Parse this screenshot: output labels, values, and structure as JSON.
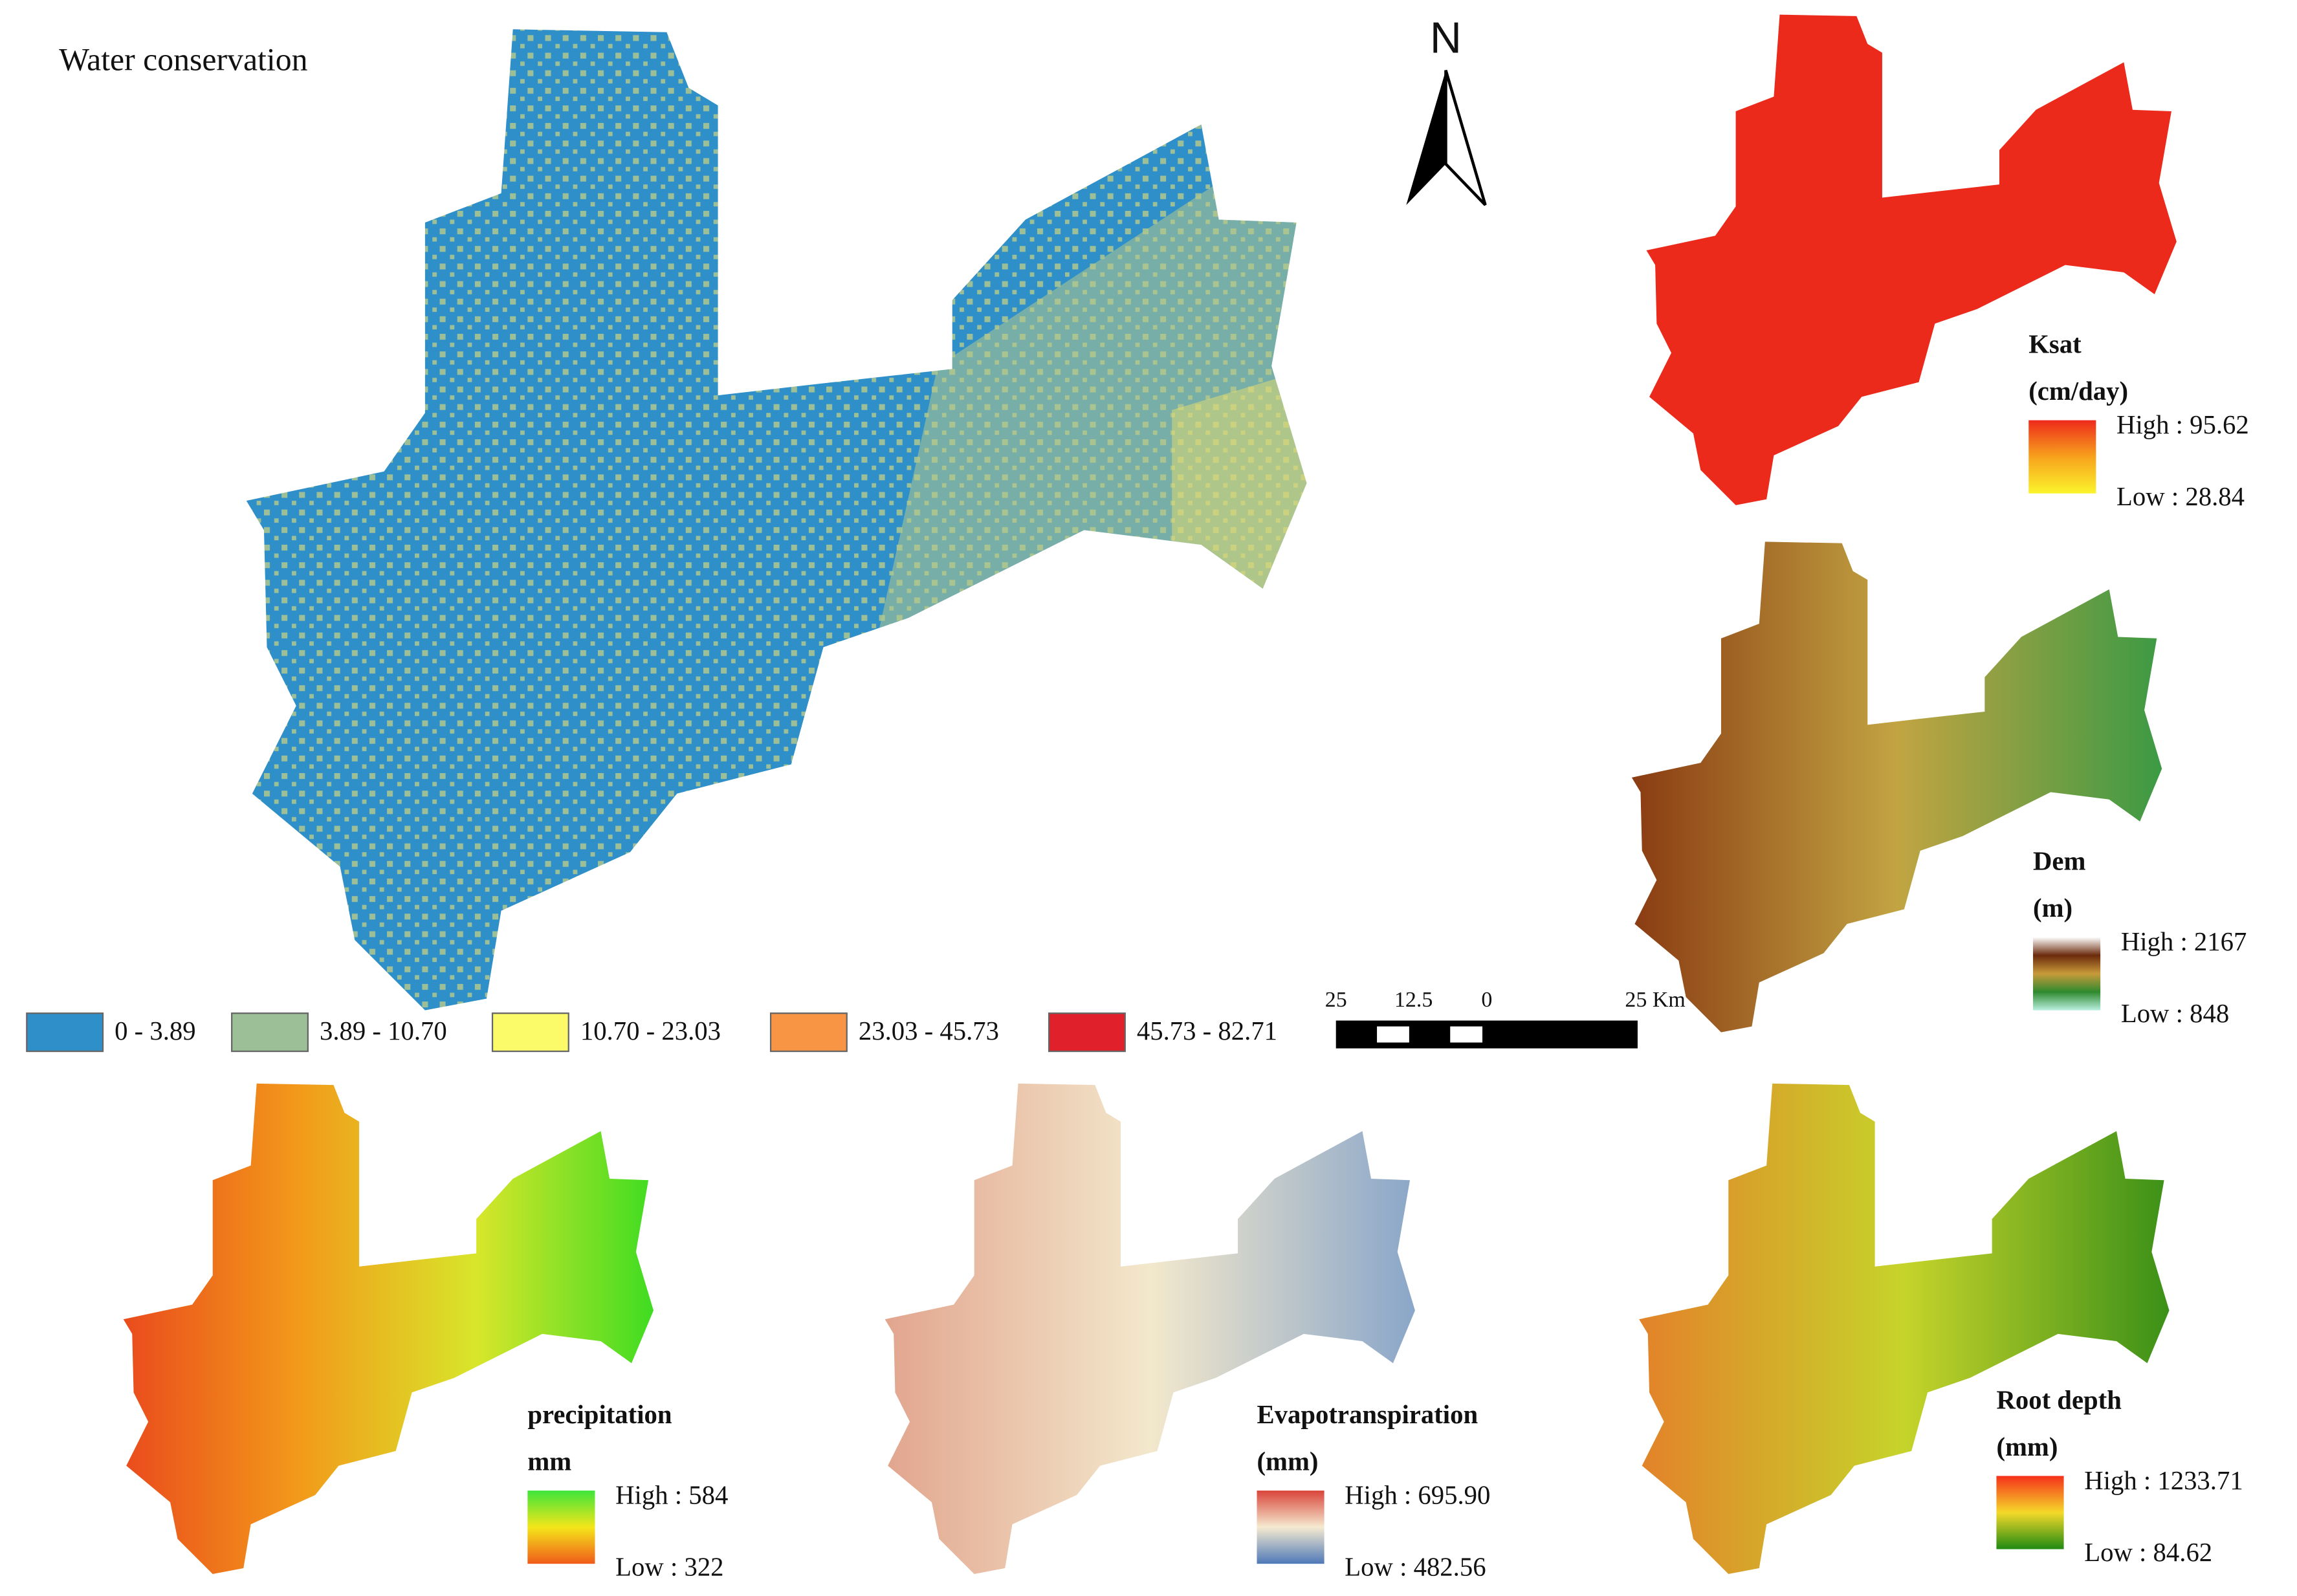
{
  "main_map": {
    "title": "Water conservation",
    "north": "N",
    "legend": [
      {
        "label": "0 - 3.89",
        "color": "#2f8fc9"
      },
      {
        "label": "3.89 - 10.70",
        "color": "#9dbf98"
      },
      {
        "label": "10.70 - 23.03",
        "color": "#fbfb6a"
      },
      {
        "label": "23.03 - 45.73",
        "color": "#f79545"
      },
      {
        "label": "45.73 - 82.71",
        "color": "#e0202a"
      }
    ],
    "scale_bar": {
      "labels": [
        "25",
        "12.5",
        "0",
        "25 Km"
      ]
    }
  },
  "panels": [
    {
      "title": "Ksat",
      "unit": "(cm/day)",
      "high": "High : 95.62",
      "low": "Low : 28.84",
      "ramp": [
        "#ee2a1b",
        "#f7a21c",
        "#fbf42c"
      ],
      "fill": [
        "#ec2a1c",
        "#ec2a1c"
      ]
    },
    {
      "title": "Dem",
      "unit": "(m)",
      "high": "High : 2167",
      "low": "Low : 848",
      "ramp": [
        "#ffffff",
        "#6b2a0c",
        "#c89a3a",
        "#2f8a2f",
        "#b9f0e0"
      ],
      "fill": [
        "#8a3b12",
        "#c2a442",
        "#3c9a44"
      ]
    },
    {
      "title": "precipitation",
      "unit": "mm",
      "high": "High : 584",
      "low": "Low : 322",
      "ramp": [
        "#3ee53a",
        "#f4e61a",
        "#f05a1a"
      ],
      "fill": [
        "#ea4b1c",
        "#f29a1a",
        "#d8e62a",
        "#3fdc22"
      ]
    },
    {
      "title": "Evapotranspiration",
      "unit": "(mm)",
      "high": "High : 695.90",
      "low": "Low : 482.56",
      "ramp": [
        "#d9453a",
        "#f5ead0",
        "#4e78b8"
      ],
      "fill": [
        "#e2a58e",
        "#f3e8cc",
        "#8aa6c9"
      ]
    },
    {
      "title": "Root depth",
      "unit": "(mm)",
      "high": "High : 1233.71",
      "low": "Low : 84.62",
      "ramp": [
        "#f5301a",
        "#f5d92a",
        "#1f8a12"
      ],
      "fill": [
        "#e3822a",
        "#c6d42a",
        "#3b9018"
      ]
    }
  ]
}
